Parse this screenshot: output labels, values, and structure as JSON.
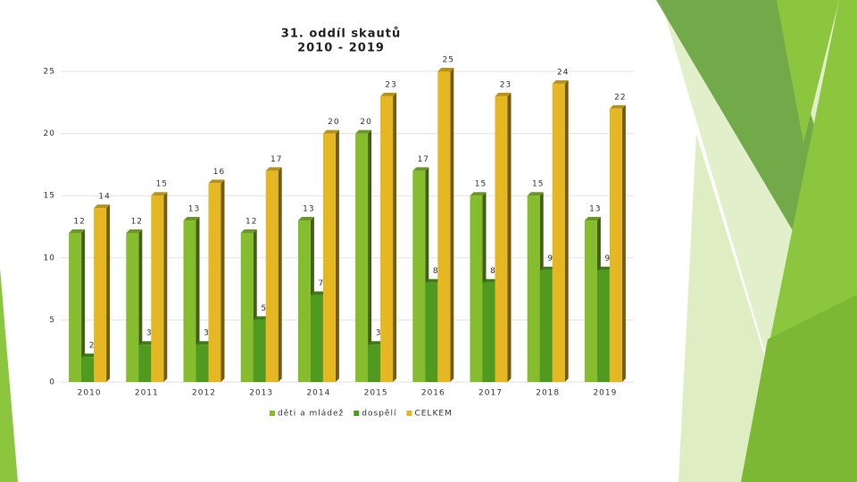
{
  "chart_data": {
    "type": "bar",
    "title": "31. oddíl skautů",
    "subtitle": "2010 - 2019",
    "categories": [
      "2010",
      "2011",
      "2012",
      "2013",
      "2014",
      "2015",
      "2016",
      "2017",
      "2018",
      "2019"
    ],
    "series": [
      {
        "name": "děti a mládež",
        "color": "#86bd2e",
        "values": [
          12,
          12,
          13,
          12,
          13,
          20,
          17,
          15,
          15,
          13
        ]
      },
      {
        "name": "dospělí",
        "color": "#4f9a1f",
        "values": [
          2,
          3,
          3,
          5,
          7,
          3,
          8,
          8,
          9,
          9
        ]
      },
      {
        "name": "CELKEM",
        "color": "#e5b722",
        "values": [
          14,
          15,
          16,
          17,
          20,
          23,
          25,
          23,
          24,
          22
        ]
      }
    ],
    "ylim": [
      0,
      25
    ],
    "yticks": [
      0,
      5,
      10,
      15,
      20,
      25
    ],
    "grid": true,
    "legend": "bottom"
  }
}
